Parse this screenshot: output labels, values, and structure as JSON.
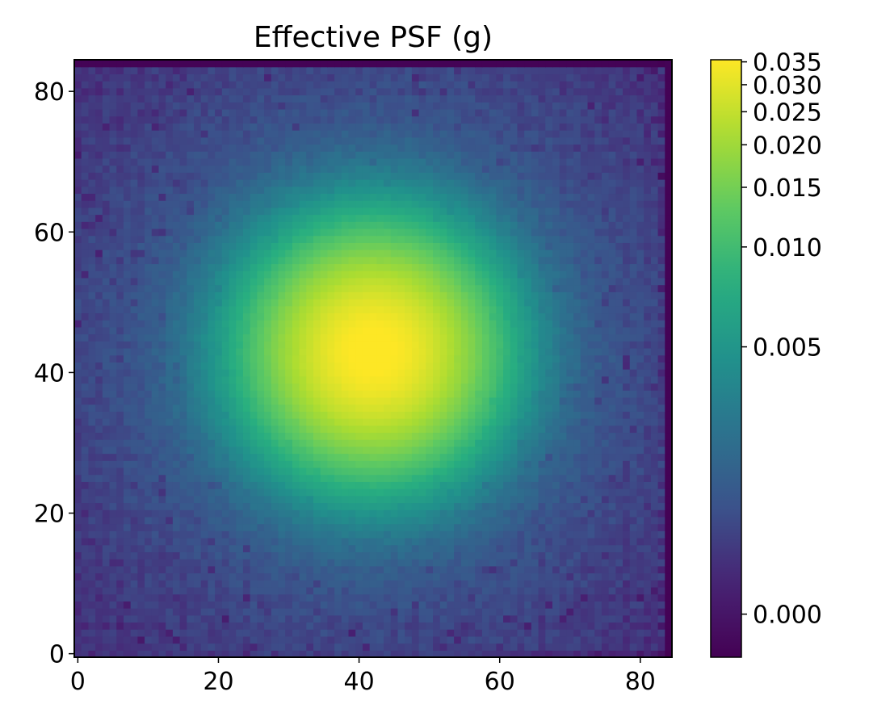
{
  "chart_data": {
    "type": "heatmap",
    "title": "Effective PSF (g)",
    "xlabel": "",
    "ylabel": "",
    "grid_size": 85,
    "xlim": [
      -0.5,
      84.5
    ],
    "ylim": [
      -0.5,
      84.5
    ],
    "xticks": [
      0,
      20,
      40,
      60,
      80
    ],
    "yticks": [
      0,
      20,
      40,
      60,
      80
    ],
    "colormap": "viridis",
    "color_scale": "asinh",
    "vmin": -0.0005,
    "vmax": 0.0355,
    "peak_location": [
      42,
      43
    ],
    "peak_value": 0.035,
    "colorbar_ticks": [
      0.0,
      0.005,
      0.01,
      0.015,
      0.02,
      0.025,
      0.03,
      0.035
    ],
    "colorbar_tick_labels": [
      "0.000",
      "0.005",
      "0.010",
      "0.015",
      "0.020",
      "0.025",
      "0.030",
      "0.035"
    ]
  }
}
